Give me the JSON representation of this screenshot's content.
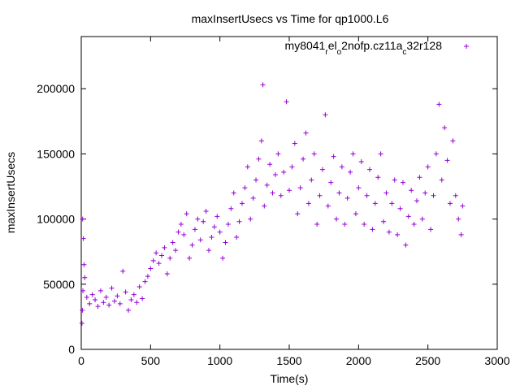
{
  "chart_data": {
    "type": "scatter",
    "title": "maxInsertUsecs vs Time for qp1000.L6",
    "xlabel": "Time(s)",
    "ylabel": "maxInsertUsecs",
    "xlim": [
      0,
      3000
    ],
    "ylim": [
      0,
      240000
    ],
    "xticks": [
      0,
      500,
      1000,
      1500,
      2000,
      2500,
      3000
    ],
    "yticks": [
      0,
      50000,
      100000,
      150000,
      200000
    ],
    "xtick_labels": [
      "0",
      "500",
      "1000",
      "1500",
      "2000",
      "2500",
      "3000"
    ],
    "ytick_labels": [
      "0",
      "50000",
      "100000",
      "150000",
      "200000"
    ],
    "legend": {
      "placement": "top-right",
      "label": {
        "base1": "my8041",
        "sub1": "r",
        "base2": "el",
        "sub2": "o",
        "base3": "2nofp.cz11a",
        "sub3": "c",
        "base4": "32r128"
      }
    },
    "grid": false,
    "marker": "+",
    "color": "#9400d3",
    "series": [
      {
        "name": "my8041_rel_o2nofp.cz11a_c32r128",
        "points": [
          [
            5,
            20000
          ],
          [
            8,
            30000
          ],
          [
            10,
            100000
          ],
          [
            12,
            45000
          ],
          [
            15,
            85000
          ],
          [
            20,
            65000
          ],
          [
            25,
            55000
          ],
          [
            40,
            40000
          ],
          [
            60,
            35000
          ],
          [
            80,
            42000
          ],
          [
            100,
            38000
          ],
          [
            120,
            33000
          ],
          [
            140,
            45000
          ],
          [
            160,
            36000
          ],
          [
            180,
            40000
          ],
          [
            200,
            34000
          ],
          [
            220,
            47000
          ],
          [
            240,
            37000
          ],
          [
            260,
            41000
          ],
          [
            280,
            35000
          ],
          [
            300,
            60000
          ],
          [
            320,
            44000
          ],
          [
            340,
            30000
          ],
          [
            360,
            38000
          ],
          [
            380,
            42000
          ],
          [
            400,
            36000
          ],
          [
            420,
            48000
          ],
          [
            440,
            39000
          ],
          [
            460,
            52000
          ],
          [
            480,
            56000
          ],
          [
            500,
            62000
          ],
          [
            520,
            68000
          ],
          [
            540,
            74000
          ],
          [
            560,
            66000
          ],
          [
            580,
            72000
          ],
          [
            600,
            78000
          ],
          [
            620,
            58000
          ],
          [
            640,
            70000
          ],
          [
            660,
            82000
          ],
          [
            680,
            76000
          ],
          [
            700,
            90000
          ],
          [
            720,
            96000
          ],
          [
            740,
            88000
          ],
          [
            760,
            104000
          ],
          [
            780,
            70000
          ],
          [
            800,
            80000
          ],
          [
            820,
            92000
          ],
          [
            840,
            100000
          ],
          [
            860,
            84000
          ],
          [
            880,
            98000
          ],
          [
            900,
            106000
          ],
          [
            920,
            76000
          ],
          [
            940,
            86000
          ],
          [
            960,
            94000
          ],
          [
            980,
            102000
          ],
          [
            1000,
            90000
          ],
          [
            1020,
            70000
          ],
          [
            1040,
            82000
          ],
          [
            1060,
            96000
          ],
          [
            1080,
            108000
          ],
          [
            1100,
            120000
          ],
          [
            1120,
            86000
          ],
          [
            1140,
            98000
          ],
          [
            1160,
            112000
          ],
          [
            1180,
            124000
          ],
          [
            1200,
            140000
          ],
          [
            1220,
            100000
          ],
          [
            1240,
            116000
          ],
          [
            1260,
            130000
          ],
          [
            1280,
            146000
          ],
          [
            1300,
            160000
          ],
          [
            1310,
            203000
          ],
          [
            1320,
            110000
          ],
          [
            1340,
            126000
          ],
          [
            1360,
            142000
          ],
          [
            1380,
            120000
          ],
          [
            1400,
            134000
          ],
          [
            1420,
            150000
          ],
          [
            1440,
            118000
          ],
          [
            1460,
            136000
          ],
          [
            1480,
            190000
          ],
          [
            1500,
            122000
          ],
          [
            1520,
            140000
          ],
          [
            1540,
            158000
          ],
          [
            1560,
            104000
          ],
          [
            1580,
            124000
          ],
          [
            1600,
            146000
          ],
          [
            1620,
            166000
          ],
          [
            1640,
            112000
          ],
          [
            1660,
            130000
          ],
          [
            1680,
            150000
          ],
          [
            1700,
            96000
          ],
          [
            1720,
            118000
          ],
          [
            1740,
            138000
          ],
          [
            1760,
            180000
          ],
          [
            1780,
            110000
          ],
          [
            1800,
            128000
          ],
          [
            1820,
            148000
          ],
          [
            1840,
            100000
          ],
          [
            1860,
            120000
          ],
          [
            1880,
            140000
          ],
          [
            1900,
            96000
          ],
          [
            1920,
            116000
          ],
          [
            1940,
            136000
          ],
          [
            1960,
            150000
          ],
          [
            1980,
            104000
          ],
          [
            2000,
            124000
          ],
          [
            2020,
            144000
          ],
          [
            2040,
            96000
          ],
          [
            2060,
            118000
          ],
          [
            2080,
            138000
          ],
          [
            2100,
            92000
          ],
          [
            2120,
            112000
          ],
          [
            2140,
            132000
          ],
          [
            2160,
            150000
          ],
          [
            2180,
            98000
          ],
          [
            2200,
            120000
          ],
          [
            2220,
            90000
          ],
          [
            2240,
            112000
          ],
          [
            2260,
            130000
          ],
          [
            2280,
            88000
          ],
          [
            2300,
            108000
          ],
          [
            2320,
            128000
          ],
          [
            2340,
            80000
          ],
          [
            2360,
            102000
          ],
          [
            2380,
            122000
          ],
          [
            2400,
            96000
          ],
          [
            2420,
            114000
          ],
          [
            2440,
            132000
          ],
          [
            2460,
            100000
          ],
          [
            2480,
            120000
          ],
          [
            2500,
            140000
          ],
          [
            2520,
            92000
          ],
          [
            2540,
            118000
          ],
          [
            2560,
            150000
          ],
          [
            2580,
            188000
          ],
          [
            2600,
            130000
          ],
          [
            2620,
            170000
          ],
          [
            2640,
            145000
          ],
          [
            2660,
            112000
          ],
          [
            2680,
            160000
          ],
          [
            2700,
            118000
          ],
          [
            2720,
            100000
          ],
          [
            2740,
            88000
          ],
          [
            2750,
            110000
          ]
        ]
      }
    ]
  }
}
